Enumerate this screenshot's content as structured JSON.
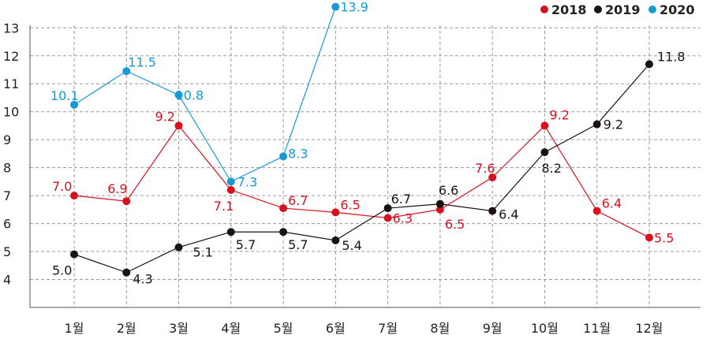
{
  "chart_data": {
    "type": "line",
    "categories": [
      "1월",
      "2월",
      "3월",
      "4월",
      "5월",
      "6월",
      "7월",
      "8월",
      "9월",
      "10월",
      "11월",
      "12월"
    ],
    "ylim": [
      3,
      13.6
    ],
    "yticks": [
      4,
      5,
      6,
      7,
      8,
      9,
      10,
      11,
      12,
      13
    ],
    "grid": true,
    "legend_position": "top-right",
    "series": [
      {
        "name": "2018",
        "color": "#d7121e",
        "values": [
          7.0,
          6.9,
          9.2,
          7.1,
          6.7,
          6.5,
          6.3,
          6.5,
          7.6,
          9.2,
          6.4,
          5.5
        ],
        "actual": [
          7.0,
          6.8,
          9.5,
          7.2,
          6.55,
          6.4,
          6.2,
          6.5,
          7.65,
          9.5,
          6.45,
          5.5
        ],
        "labels": [
          "7.0",
          "6.9",
          "9.2",
          "7.1",
          "6.7",
          "6.5",
          "6.3",
          "6.5",
          "7.6",
          "9.2",
          "6.4",
          "5.5"
        ]
      },
      {
        "name": "2019",
        "color": "#1a1311",
        "values": [
          5.0,
          4.3,
          5.1,
          5.7,
          5.7,
          5.4,
          6.7,
          6.6,
          6.4,
          8.2,
          9.2,
          11.8
        ],
        "actual": [
          4.9,
          4.25,
          5.15,
          5.7,
          5.7,
          5.4,
          6.55,
          6.7,
          6.45,
          8.55,
          9.55,
          11.7
        ],
        "labels": [
          "5.0",
          "4.3",
          "5.1",
          "5.7",
          "5.7",
          "5.4",
          "6.7",
          "6.6",
          "6.4",
          "8.2",
          "9.2",
          "11.8"
        ]
      },
      {
        "name": "2020",
        "color": "#1799d6",
        "values": [
          10.1,
          11.5,
          10.8,
          7.3,
          8.3,
          13.9,
          null,
          null,
          null,
          null,
          null,
          null
        ],
        "actual": [
          10.25,
          11.45,
          10.6,
          7.5,
          8.4,
          13.75,
          null,
          null,
          null,
          null,
          null,
          null
        ],
        "labels": [
          "10.1",
          "11.5",
          "10.8",
          "7.3",
          "8.3",
          "13.9",
          null,
          null,
          null,
          null,
          null,
          null
        ]
      }
    ]
  }
}
